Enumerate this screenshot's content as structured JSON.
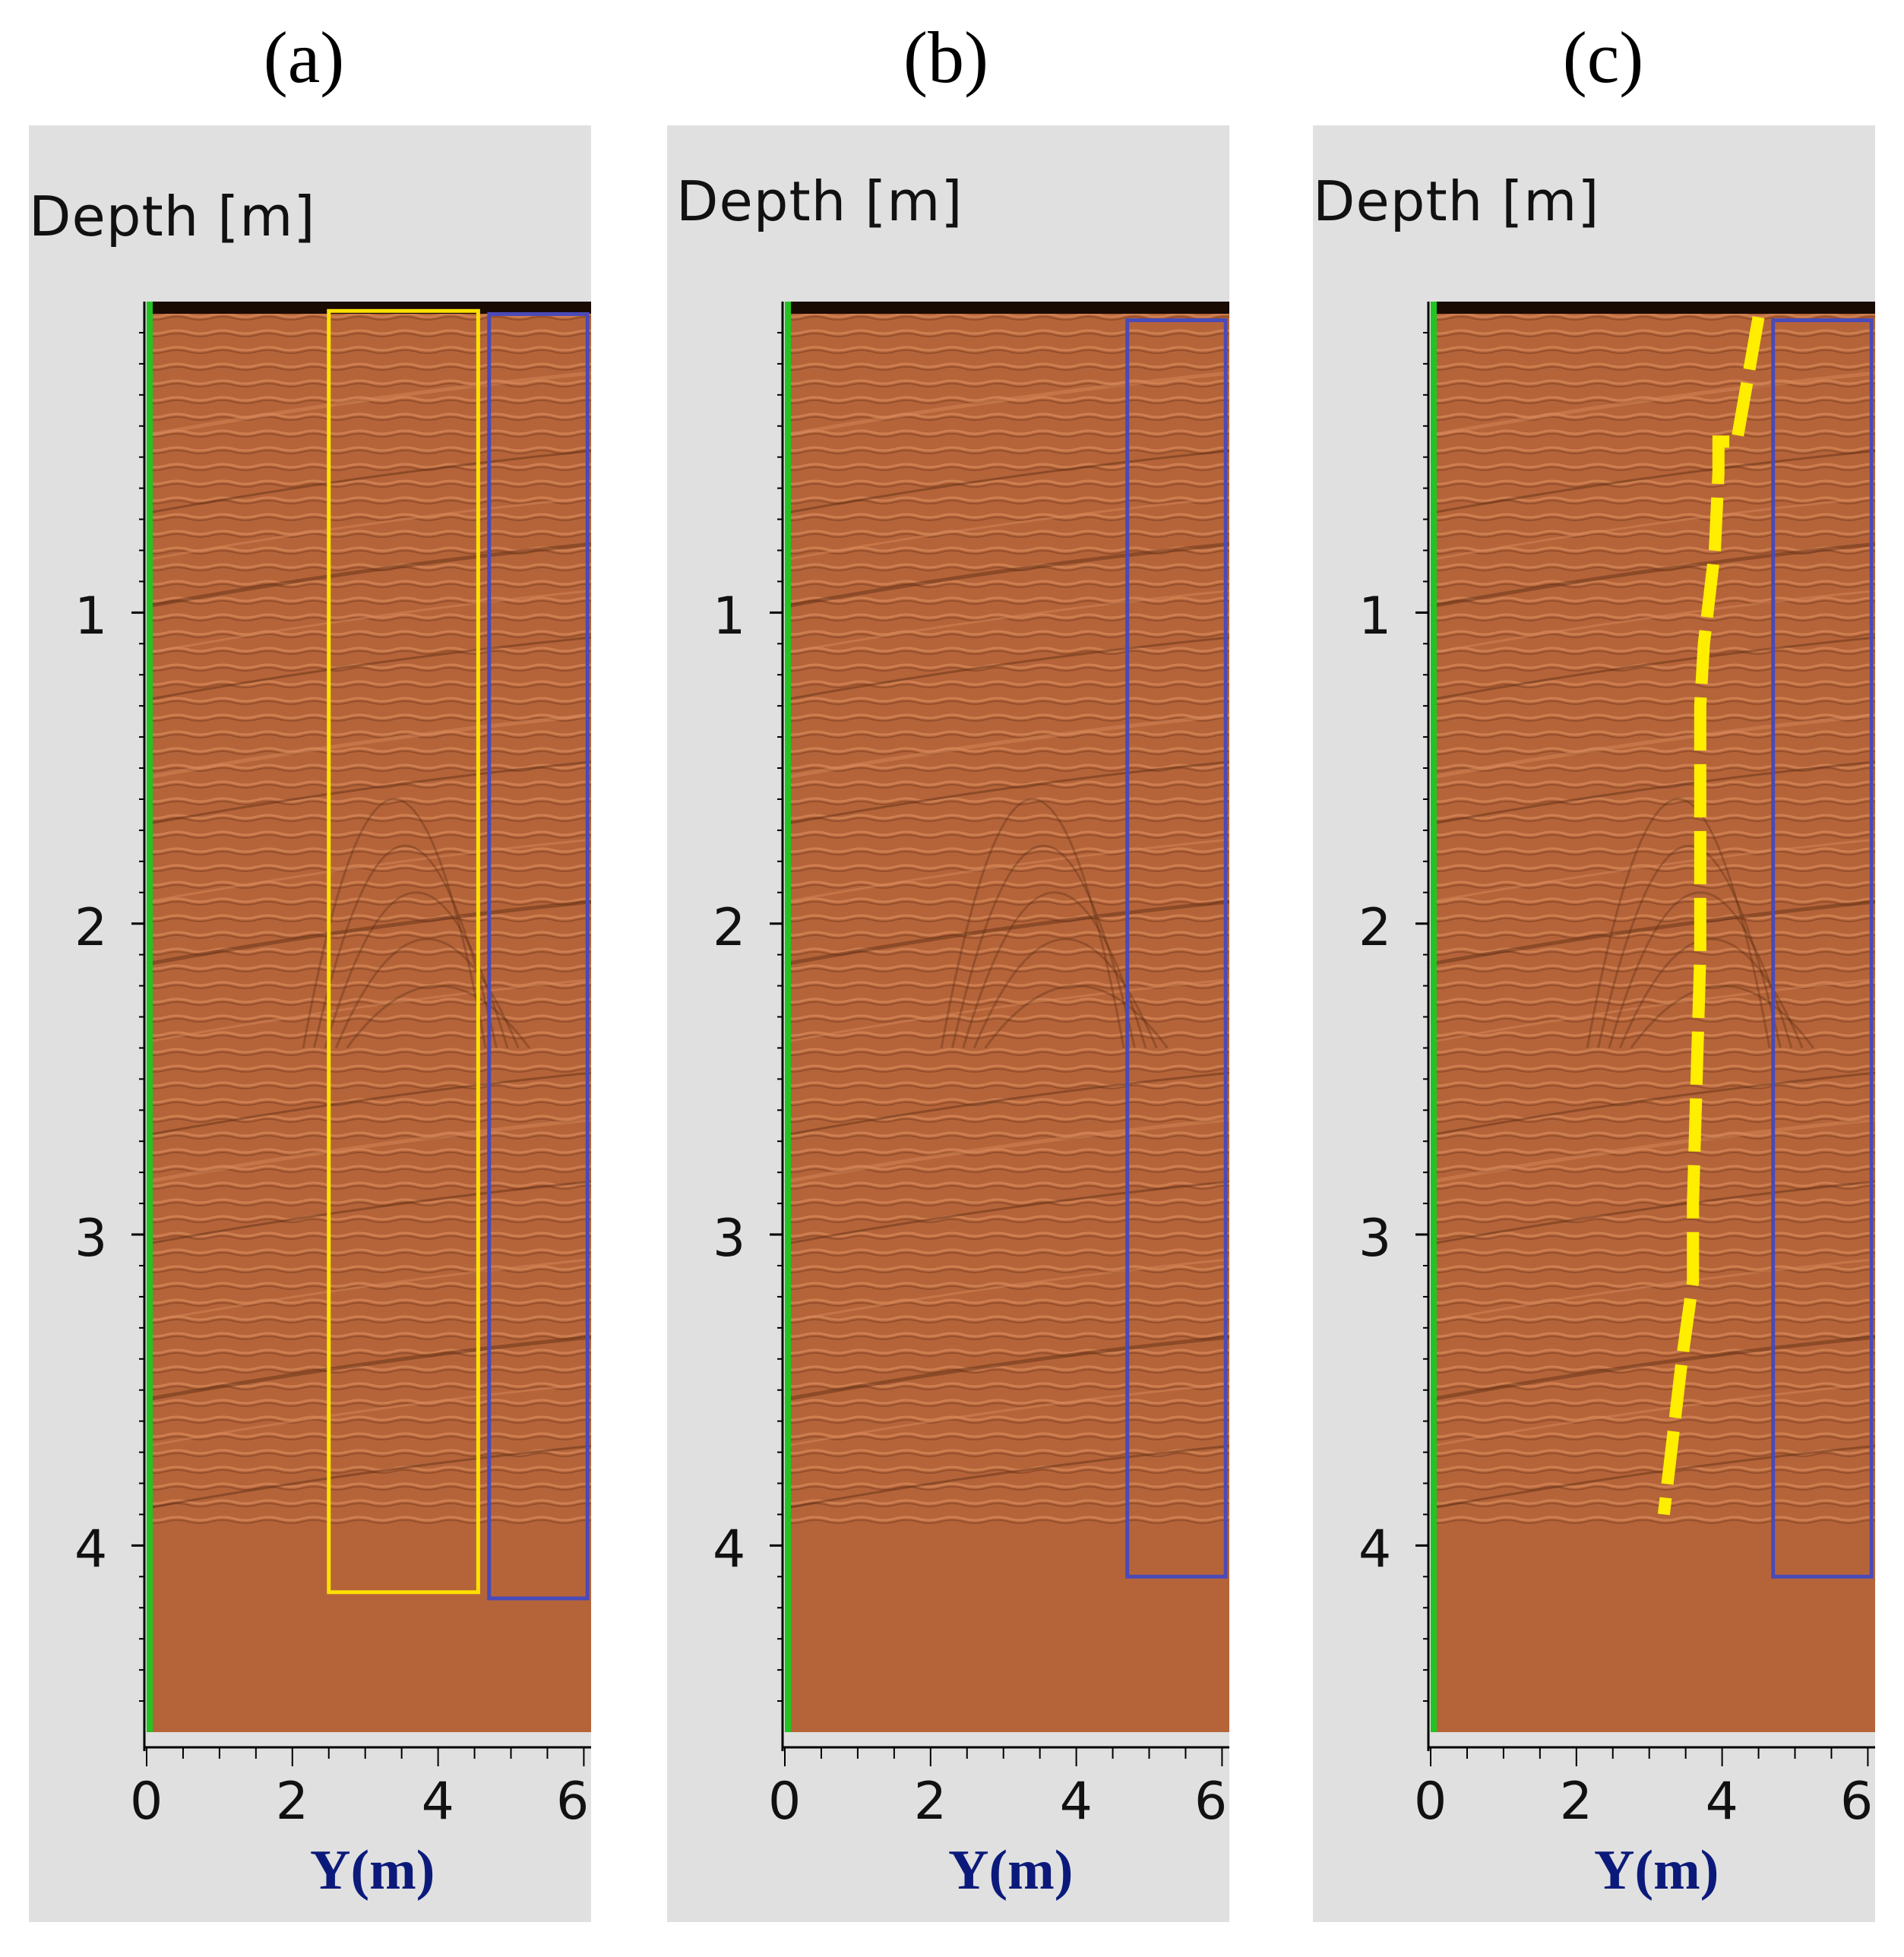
{
  "figure": {
    "type": "gpr-radargram-panels",
    "colors": {
      "background": "#e0e0e0",
      "radargram": "#b5643a",
      "radargram_light": "#d98a5a",
      "radargram_dark": "#5a2a12",
      "axis_green": "#22c422",
      "yellow_box": "#ffe000",
      "blue_box": "#4a4ab8",
      "yellow_trace": "#ffee00",
      "axis_title_color": "#0b1a7a"
    }
  },
  "chart_data": [
    {
      "type": "heatmap",
      "panel_label": "(a)",
      "ylabel": "Depth [m]",
      "xlabel": "Y(m)",
      "x_ticks": [
        "0",
        "2",
        "4",
        "6"
      ],
      "y_ticks": [
        "1",
        "2",
        "3",
        "4"
      ],
      "xlim": [
        0,
        6.1
      ],
      "ylim": [
        4.6,
        0
      ],
      "signal_depth_end": 3.95,
      "boxes": [
        {
          "color": "yellow",
          "x0": 2.5,
          "x1": 4.55,
          "y0": 0.03,
          "y1": 4.15
        },
        {
          "color": "blue",
          "x0": 4.7,
          "x1": 6.05,
          "y0": 0.04,
          "y1": 4.17
        }
      ],
      "trace": []
    },
    {
      "type": "heatmap",
      "panel_label": "(b)",
      "ylabel": "Depth [m]",
      "xlabel": "Y(m)",
      "x_ticks": [
        "0",
        "2",
        "4",
        "6"
      ],
      "y_ticks": [
        "1",
        "2",
        "3",
        "4"
      ],
      "xlim": [
        0,
        6.1
      ],
      "ylim": [
        4.6,
        0
      ],
      "signal_depth_end": 3.95,
      "boxes": [
        {
          "color": "blue",
          "x0": 4.7,
          "x1": 6.05,
          "y0": 0.06,
          "y1": 4.1
        }
      ],
      "trace": []
    },
    {
      "type": "heatmap",
      "panel_label": "(c)",
      "ylabel": "Depth [m]",
      "xlabel": "Y(m)",
      "x_ticks": [
        "0",
        "2",
        "4",
        "6"
      ],
      "y_ticks": [
        "1",
        "2",
        "3",
        "4"
      ],
      "xlim": [
        0,
        6.1
      ],
      "ylim": [
        4.6,
        0
      ],
      "signal_depth_end": 3.95,
      "boxes": [
        {
          "color": "blue",
          "x0": 4.7,
          "x1": 6.05,
          "y0": 0.06,
          "y1": 4.1
        }
      ],
      "trace": [
        {
          "x": 4.5,
          "y": 0.05
        },
        {
          "x": 4.2,
          "y": 0.45
        },
        {
          "x": 3.95,
          "y": 0.45
        },
        {
          "x": 3.95,
          "y": 0.55
        },
        {
          "x": 3.9,
          "y": 0.8
        },
        {
          "x": 3.75,
          "y": 1.1
        },
        {
          "x": 3.7,
          "y": 1.3
        },
        {
          "x": 3.7,
          "y": 1.7
        },
        {
          "x": 3.7,
          "y": 2.1
        },
        {
          "x": 3.65,
          "y": 2.5
        },
        {
          "x": 3.6,
          "y": 2.9
        },
        {
          "x": 3.6,
          "y": 3.15
        },
        {
          "x": 3.45,
          "y": 3.4
        },
        {
          "x": 3.3,
          "y": 3.7
        },
        {
          "x": 3.2,
          "y": 3.9
        }
      ]
    }
  ]
}
